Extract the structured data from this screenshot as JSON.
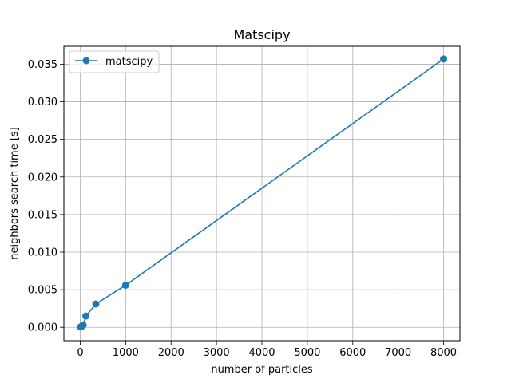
{
  "chart_data": {
    "type": "line",
    "title": "Matscipy",
    "xlabel": "number of particles",
    "ylabel": "neighbors search time [s]",
    "xlim": [
      -360,
      8360
    ],
    "ylim": [
      -0.00178,
      0.03738
    ],
    "xticks": [
      0,
      1000,
      2000,
      3000,
      4000,
      5000,
      6000,
      7000,
      8000
    ],
    "xtick_labels": [
      "0",
      "1000",
      "2000",
      "3000",
      "4000",
      "5000",
      "6000",
      "7000",
      "8000"
    ],
    "yticks": [
      0.0,
      0.005,
      0.01,
      0.015,
      0.02,
      0.025,
      0.03,
      0.035
    ],
    "ytick_labels": [
      "0.000",
      "0.005",
      "0.010",
      "0.015",
      "0.020",
      "0.025",
      "0.030",
      "0.035"
    ],
    "grid": true,
    "legend_position": "top-left",
    "series": [
      {
        "name": "matscipy",
        "color": "#1f77b4",
        "marker": "circle",
        "x": [
          8,
          27,
          64,
          125,
          343,
          1000,
          8000
        ],
        "y": [
          5e-05,
          0.0001,
          0.0003,
          0.0015,
          0.0031,
          0.0056,
          0.0357
        ]
      }
    ]
  }
}
